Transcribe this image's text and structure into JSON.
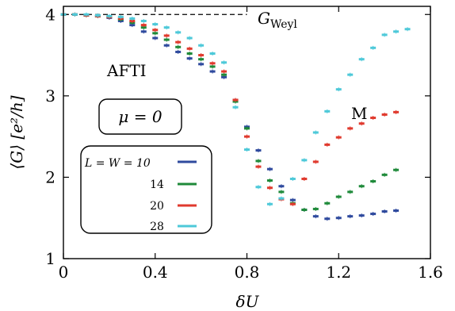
{
  "chart_data": {
    "type": "scatter",
    "xlabel": "δU",
    "ylabel": "⟨G⟩ [e²/h]",
    "xlim": [
      0,
      1.6
    ],
    "ylim": [
      1,
      4.1
    ],
    "xticks": [
      0,
      0.4,
      0.8,
      1.2,
      1.6
    ],
    "yticks": [
      1,
      2,
      3,
      4
    ],
    "xtick_labels": [
      "0",
      "0.4",
      "0.8",
      "1.2",
      "1.6"
    ],
    "ytick_labels": [
      "1",
      "2",
      "3",
      "4"
    ],
    "reference_line": {
      "y": 4.0,
      "x_range": [
        0,
        0.8
      ],
      "label": "G",
      "label_subscript": "Weyl",
      "style": "dashed"
    },
    "annotations": {
      "phase_left": "AFTI",
      "phase_right": "M",
      "mu_box": "μ = 0"
    },
    "legend": {
      "placement": "lower-left",
      "header": "L = W ="
    },
    "series": [
      {
        "name": "10",
        "color": "#2f4a9e",
        "x": [
          0,
          0.05,
          0.1,
          0.15,
          0.2,
          0.25,
          0.3,
          0.35,
          0.4,
          0.45,
          0.5,
          0.55,
          0.6,
          0.65,
          0.7,
          0.75,
          0.8,
          0.85,
          0.9,
          0.95,
          1.0,
          1.05,
          1.1,
          1.15,
          1.2,
          1.25,
          1.3,
          1.35,
          1.4,
          1.45
        ],
        "values": [
          4.0,
          4.0,
          3.99,
          3.98,
          3.96,
          3.92,
          3.87,
          3.79,
          3.71,
          3.62,
          3.54,
          3.46,
          3.39,
          3.3,
          3.23,
          2.95,
          2.62,
          2.33,
          2.1,
          1.89,
          1.72,
          1.6,
          1.52,
          1.49,
          1.5,
          1.52,
          1.53,
          1.55,
          1.58,
          1.59
        ]
      },
      {
        "name": "14",
        "color": "#1f8a3a",
        "x": [
          0,
          0.05,
          0.1,
          0.15,
          0.2,
          0.25,
          0.3,
          0.35,
          0.4,
          0.45,
          0.5,
          0.55,
          0.6,
          0.65,
          0.7,
          0.75,
          0.8,
          0.85,
          0.9,
          0.95,
          1.0,
          1.05,
          1.1,
          1.15,
          1.2,
          1.25,
          1.3,
          1.35,
          1.4,
          1.45
        ],
        "values": [
          4.0,
          4.0,
          3.99,
          3.98,
          3.97,
          3.94,
          3.9,
          3.84,
          3.77,
          3.69,
          3.6,
          3.52,
          3.45,
          3.36,
          3.26,
          2.93,
          2.6,
          2.2,
          1.96,
          1.82,
          1.68,
          1.6,
          1.61,
          1.68,
          1.76,
          1.82,
          1.89,
          1.95,
          2.03,
          2.09
        ]
      },
      {
        "name": "20",
        "color": "#e03a2e",
        "x": [
          0,
          0.05,
          0.1,
          0.15,
          0.2,
          0.25,
          0.3,
          0.35,
          0.4,
          0.45,
          0.5,
          0.55,
          0.6,
          0.65,
          0.7,
          0.75,
          0.8,
          0.85,
          0.9,
          0.95,
          1.0,
          1.05,
          1.1,
          1.15,
          1.2,
          1.25,
          1.3,
          1.35,
          1.4,
          1.45
        ],
        "values": [
          4.0,
          4.0,
          3.99,
          3.98,
          3.97,
          3.95,
          3.92,
          3.87,
          3.81,
          3.74,
          3.66,
          3.58,
          3.5,
          3.4,
          3.3,
          2.95,
          2.5,
          2.13,
          1.87,
          1.73,
          1.67,
          1.98,
          2.19,
          2.4,
          2.49,
          2.6,
          2.66,
          2.73,
          2.77,
          2.8
        ]
      },
      {
        "name": "28",
        "color": "#4ec9d9",
        "x": [
          0,
          0.05,
          0.1,
          0.15,
          0.2,
          0.25,
          0.3,
          0.35,
          0.4,
          0.45,
          0.5,
          0.55,
          0.6,
          0.65,
          0.7,
          0.75,
          0.8,
          0.85,
          0.9,
          0.95,
          1.0,
          1.05,
          1.1,
          1.15,
          1.2,
          1.25,
          1.3,
          1.35,
          1.4,
          1.45,
          1.5
        ],
        "values": [
          4.0,
          4.0,
          4.0,
          3.99,
          3.98,
          3.97,
          3.95,
          3.92,
          3.88,
          3.84,
          3.78,
          3.71,
          3.62,
          3.52,
          3.41,
          2.86,
          2.34,
          1.88,
          1.67,
          1.74,
          1.98,
          2.21,
          2.55,
          2.81,
          3.08,
          3.26,
          3.45,
          3.59,
          3.75,
          3.79,
          3.82
        ]
      }
    ]
  }
}
